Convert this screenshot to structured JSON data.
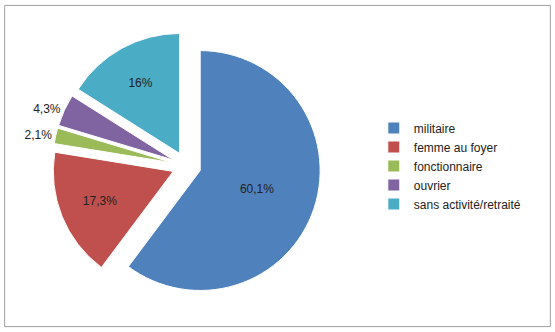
{
  "chart_data": {
    "type": "pie",
    "categories": [
      "militaire",
      "femme au foyer",
      "fonctionnaire",
      "ouvrier",
      "sans activité/retraité"
    ],
    "values": [
      60.1,
      17.3,
      2.1,
      4.3,
      16
    ],
    "value_labels": [
      "60,1%",
      "17,3%",
      "2,1%",
      "4,3%",
      "16%"
    ],
    "colors": [
      "#4f81bd",
      "#c0504d",
      "#9bbb59",
      "#8064a2",
      "#4bacc6"
    ],
    "data_labels": true,
    "legend": "right"
  }
}
